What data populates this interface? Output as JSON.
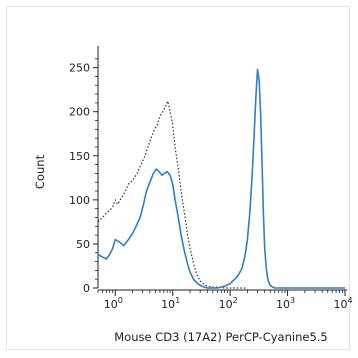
{
  "chart_data": {
    "type": "line",
    "xlabel": "Mouse CD3 (17A2) PerCP-Cyanine5.5",
    "ylabel": "Count",
    "x_scale": "log",
    "xlim": [
      0.5,
      10000
    ],
    "ylim": [
      0,
      270
    ],
    "x_ticks": [
      {
        "value": 1,
        "base": "10",
        "exp": "0"
      },
      {
        "value": 10,
        "base": "10",
        "exp": "1"
      },
      {
        "value": 100,
        "base": "10",
        "exp": "2"
      },
      {
        "value": 1000,
        "base": "10",
        "exp": "3"
      },
      {
        "value": 10000,
        "base": "10",
        "exp": "4"
      }
    ],
    "y_ticks": [
      "0",
      "50",
      "100",
      "150",
      "200",
      "250"
    ],
    "grid": false,
    "legend": "none",
    "series": [
      {
        "style": "dotted",
        "color": "#333333",
        "x": [
          0.5,
          0.6,
          0.7,
          0.8,
          0.9,
          1.0,
          1.1,
          1.3,
          1.5,
          1.7,
          2.0,
          2.4,
          2.8,
          3.2,
          3.7,
          4.2,
          4.8,
          5.4,
          6.0,
          6.7,
          7.4,
          8.2,
          9.0,
          10,
          11,
          12.5,
          14,
          16,
          18,
          20,
          23,
          26,
          30,
          35,
          40,
          50,
          60,
          80,
          100,
          130,
          200
        ],
        "y": [
          75,
          80,
          85,
          88,
          92,
          100,
          95,
          103,
          110,
          118,
          122,
          130,
          140,
          148,
          160,
          170,
          180,
          185,
          195,
          200,
          205,
          212,
          200,
          185,
          160,
          135,
          110,
          85,
          62,
          45,
          28,
          16,
          8,
          4,
          2,
          1,
          1,
          0,
          0,
          0,
          0
        ]
      },
      {
        "style": "solid",
        "color": "#2f7fc1",
        "x": [
          0.5,
          0.6,
          0.7,
          0.8,
          0.9,
          1.0,
          1.2,
          1.4,
          1.7,
          2.0,
          2.3,
          2.7,
          3.1,
          3.5,
          4.0,
          4.6,
          5.2,
          5.8,
          6.5,
          7.2,
          8.0,
          9.0,
          10,
          11,
          12.5,
          14,
          16,
          18,
          20,
          23,
          27,
          32,
          40,
          60,
          80,
          100,
          120,
          140,
          160,
          180,
          200,
          220,
          240,
          260,
          280,
          300,
          320,
          340,
          360,
          380,
          400,
          430,
          460,
          500,
          550,
          600,
          700,
          1000,
          2000,
          10000
        ],
        "y": [
          38,
          35,
          33,
          38,
          45,
          55,
          52,
          48,
          55,
          62,
          70,
          80,
          95,
          110,
          120,
          130,
          135,
          132,
          128,
          130,
          132,
          128,
          118,
          100,
          80,
          60,
          42,
          28,
          18,
          10,
          5,
          2,
          0,
          0,
          2,
          5,
          10,
          15,
          22,
          35,
          55,
          85,
          125,
          170,
          215,
          248,
          235,
          195,
          140,
          85,
          45,
          20,
          8,
          3,
          1,
          0,
          0,
          0,
          0,
          0
        ]
      }
    ]
  }
}
